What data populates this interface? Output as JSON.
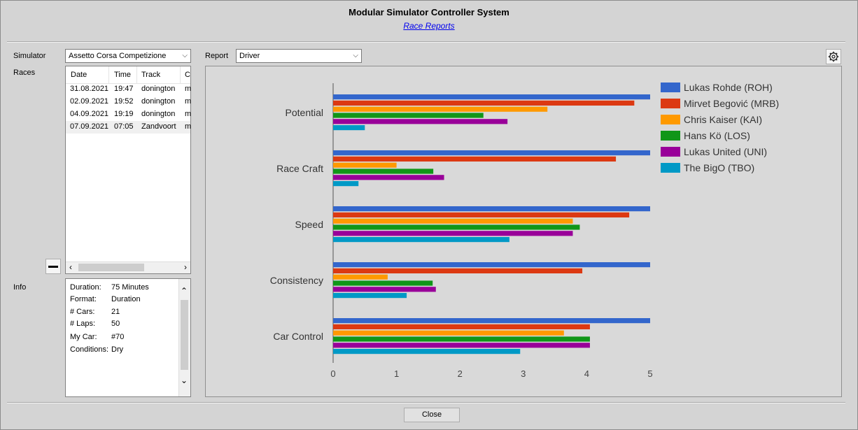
{
  "window": {
    "title": "Modular Simulator Controller System",
    "subtitle_link": "Race Reports"
  },
  "left": {
    "simulator_label": "Simulator",
    "simulator_value": "Assetto Corsa Competizione",
    "races_label": "Races",
    "info_label": "Info",
    "races_columns": [
      "Date",
      "Time",
      "Track",
      "C"
    ],
    "races": [
      {
        "date": "31.08.2021",
        "time": "19:47",
        "track": "donington",
        "c": "m"
      },
      {
        "date": "02.09.2021",
        "time": "19:52",
        "track": "donington",
        "c": "m"
      },
      {
        "date": "04.09.2021",
        "time": "19:19",
        "track": "donington",
        "c": "m"
      },
      {
        "date": "07.09.2021",
        "time": "07:05",
        "track": "Zandvoort",
        "c": "m"
      }
    ],
    "info": [
      {
        "key": "Duration:",
        "value": "75 Minutes"
      },
      {
        "key": "Format:",
        "value": "Duration"
      },
      {
        "key": "# Cars:",
        "value": "21"
      },
      {
        "key": "# Laps:",
        "value": "50"
      },
      {
        "key": "My Car:",
        "value": "#70"
      },
      {
        "key": "Conditions:",
        "value": "Dry"
      }
    ]
  },
  "report": {
    "label": "Report",
    "value": "Driver",
    "settings_icon": "gear-icon"
  },
  "footer": {
    "close_label": "Close"
  },
  "chart_data": {
    "type": "bar",
    "orientation": "horizontal",
    "categories": [
      "Potential",
      "Race Craft",
      "Speed",
      "Consistency",
      "Car Control"
    ],
    "xlim": [
      0,
      5
    ],
    "xticks": [
      "0",
      "1",
      "2",
      "3",
      "4",
      "5"
    ],
    "legend_position": "top-right",
    "grid": false,
    "series": [
      {
        "name": "Lukas Rohde (ROH)",
        "color": "#3366cc",
        "values": [
          5.0,
          5.0,
          5.0,
          5.0,
          5.0
        ]
      },
      {
        "name": "Mirvet Begović (MRB)",
        "color": "#dc3912",
        "values": [
          4.75,
          4.46,
          4.67,
          3.93,
          4.05
        ]
      },
      {
        "name": "Chris Kaiser (KAI)",
        "color": "#ff9900",
        "values": [
          3.38,
          1.0,
          3.78,
          0.86,
          3.64
        ]
      },
      {
        "name": "Hans Kö (LOS)",
        "color": "#109618",
        "values": [
          2.37,
          1.58,
          3.89,
          1.57,
          4.05
        ]
      },
      {
        "name": "Lukas United (UNI)",
        "color": "#990099",
        "values": [
          2.75,
          1.75,
          3.78,
          1.62,
          4.05
        ]
      },
      {
        "name": "The BigO (TBO)",
        "color": "#0099c6",
        "values": [
          0.5,
          0.4,
          2.78,
          1.16,
          2.95
        ]
      }
    ]
  }
}
